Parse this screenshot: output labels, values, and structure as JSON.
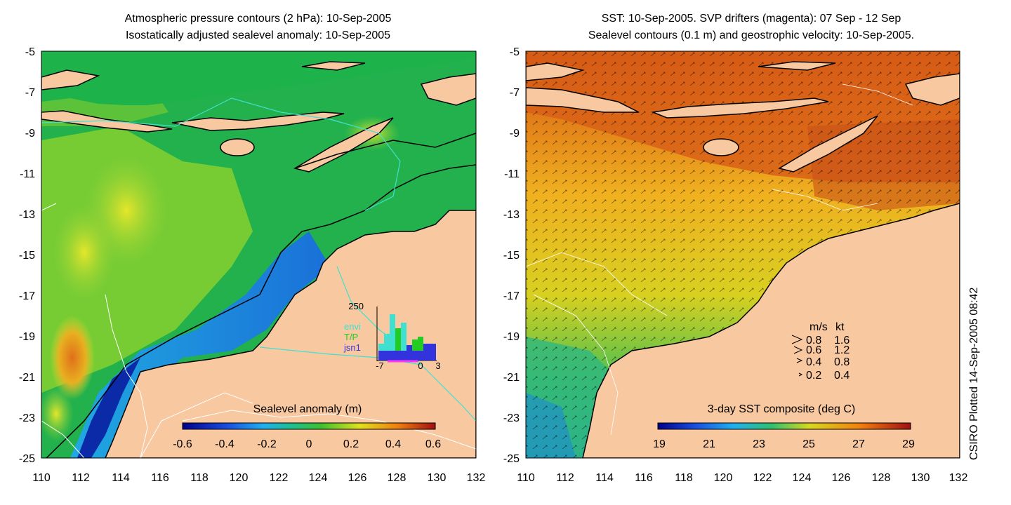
{
  "left_panel": {
    "title_line1": "Atmospheric pressure contours (2 hPa): 10-Sep-2005",
    "title_line2": "Isostatically adjusted sealevel anomaly: 10-Sep-2005",
    "y_ticks": [
      "-5",
      "-7",
      "-9",
      "-11",
      "-13",
      "-15",
      "-17",
      "-19",
      "-21",
      "-23",
      "-25"
    ],
    "x_ticks": [
      "110",
      "112",
      "114",
      "116",
      "118",
      "120",
      "122",
      "124",
      "126",
      "128",
      "130",
      "132"
    ],
    "colorbar": {
      "title": "Sealevel anomaly (m)",
      "labels": [
        "-0.6",
        "-0.4",
        "-0.2",
        "0",
        "0.2",
        "0.4",
        "0.6"
      ],
      "range": [
        -0.6,
        0.6
      ]
    },
    "inset": {
      "y_label": "250",
      "x_labels": [
        "-7",
        "0",
        "3"
      ],
      "legend": [
        {
          "label": "envi",
          "color": "#40e0d0"
        },
        {
          "label": "T/P",
          "color": "#22cc22"
        },
        {
          "label": "jsn1",
          "color": "#3333dd"
        }
      ]
    }
  },
  "right_panel": {
    "title_line1": "SST: 10-Sep-2005. SVP drifters (magenta): 07 Sep - 12 Sep",
    "title_line2": "Sealevel contours (0.1 m) and geostrophic velocity: 10-Sep-2005.",
    "y_ticks": [
      "-5",
      "-7",
      "-9",
      "-11",
      "-13",
      "-15",
      "-17",
      "-19",
      "-21",
      "-23",
      "-25"
    ],
    "x_ticks": [
      "110",
      "112",
      "114",
      "116",
      "118",
      "120",
      "122",
      "124",
      "126",
      "128",
      "130",
      "132"
    ],
    "colorbar": {
      "title": "3-day SST composite (deg C)",
      "labels": [
        "19",
        "21",
        "23",
        "25",
        "27",
        "29"
      ],
      "range": [
        19,
        29
      ]
    },
    "velocity_legend": {
      "header_ms": "m/s",
      "header_kt": "kt",
      "rows": [
        {
          "ms": "0.8",
          "kt": "1.6"
        },
        {
          "ms": "0.6",
          "kt": "1.2"
        },
        {
          "ms": "0.4",
          "kt": "0.8"
        },
        {
          "ms": "0.2",
          "kt": "0.4"
        }
      ]
    }
  },
  "credit": "CSIRO Plotted 14-Sep-2005 08:42",
  "colors": {
    "land": "#f8c8a0",
    "sea_green": "#1db34a",
    "sea_blue": "#1f7ae0",
    "sst_orange": "#e88a1a",
    "contour_cyan": "#40e0d0"
  }
}
